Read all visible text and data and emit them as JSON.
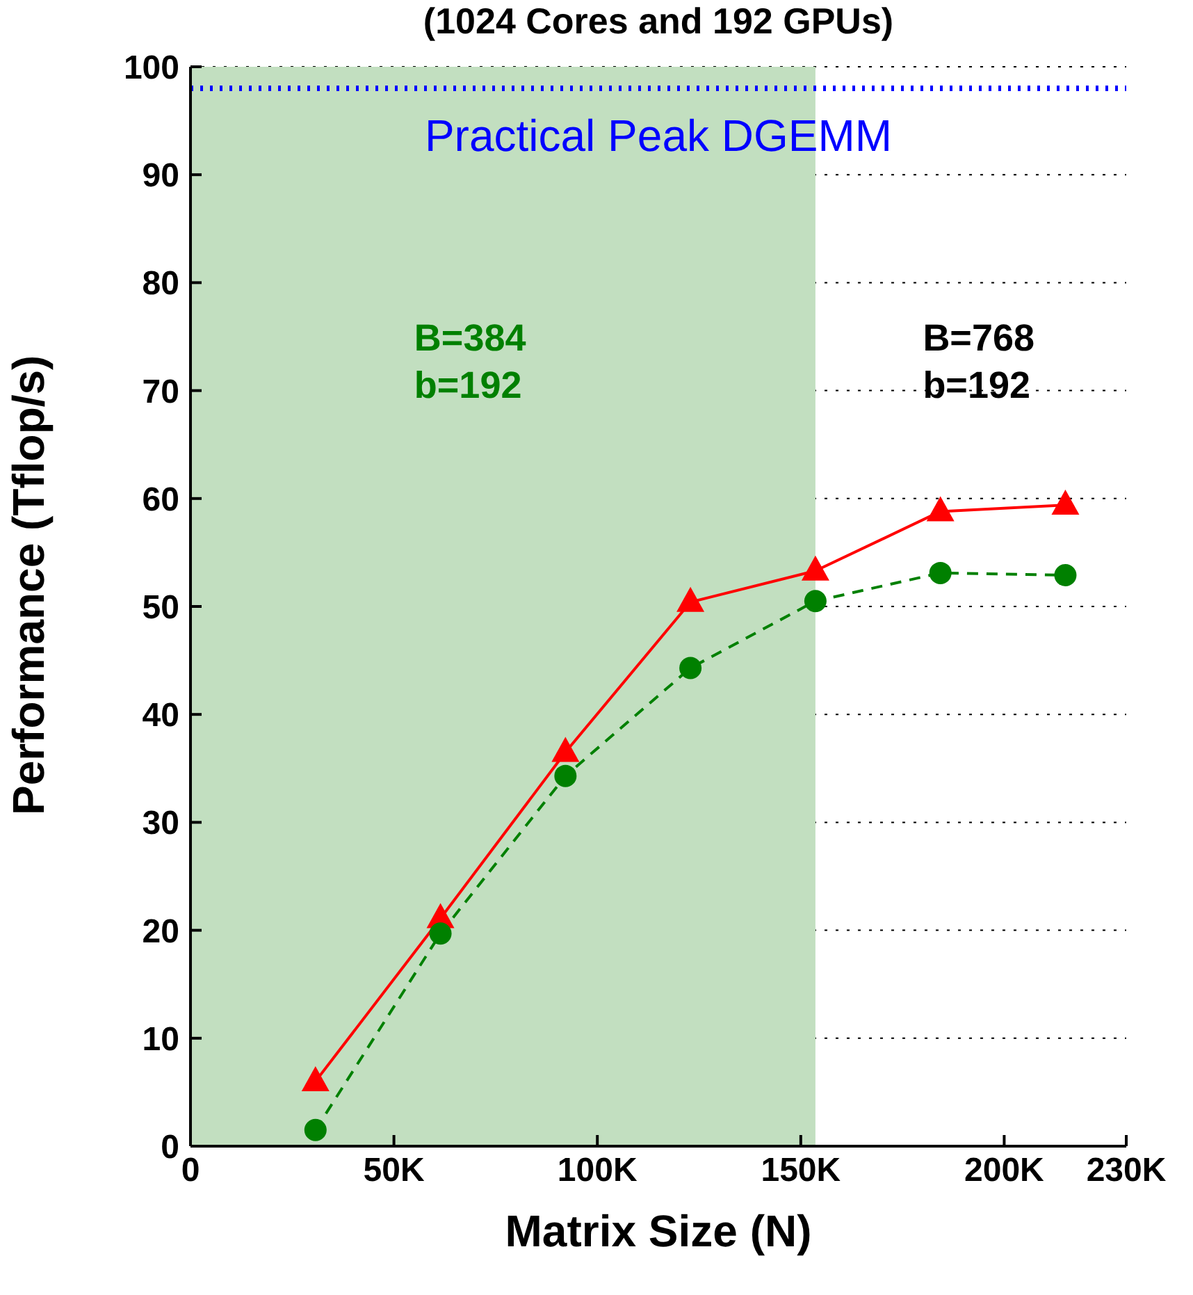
{
  "chart_data": {
    "type": "line",
    "title": "(1024 Cores and 192 GPUs)",
    "xlabel": "Matrix Size (N)",
    "ylabel": "Performance (Tflop/s)",
    "x": [
      30720,
      61440,
      92160,
      122880,
      153600,
      184320,
      215040
    ],
    "series": [
      {
        "color": "#ff0000",
        "marker": "triangle",
        "line_style": "solid",
        "values": [
          6.0,
          21.1,
          36.5,
          50.4,
          53.3,
          58.8,
          59.4
        ]
      },
      {
        "color": "#008000",
        "marker": "circle",
        "line_style": "dashed",
        "values": [
          1.5,
          19.7,
          34.3,
          44.3,
          50.5,
          53.1,
          52.9
        ]
      }
    ],
    "xlim": [
      0,
      230000
    ],
    "xticks": [
      0,
      {
        "value": 50000,
        "label": "50K"
      },
      {
        "value": 100000,
        "label": "100K"
      },
      {
        "value": 150000,
        "label": "150K"
      },
      {
        "value": 200000,
        "label": "200K"
      },
      {
        "value": 230000,
        "label": "230K"
      }
    ],
    "ylim": [
      0,
      100
    ],
    "yticks": [
      0,
      10,
      20,
      30,
      40,
      50,
      60,
      70,
      80,
      90,
      100
    ],
    "grid": "y",
    "ref_lines": [
      {
        "axis": "y",
        "value": 98,
        "label": "Practical Peak DGEMM",
        "color": "#0000ff",
        "line_style": "dotted"
      }
    ],
    "bands": [
      {
        "axis": "x",
        "from": 0,
        "to": 153600,
        "color": "#c2dfc0"
      }
    ],
    "annotations": [
      "B=384\nb=192",
      "B=768\nb=192"
    ],
    "legend": false
  }
}
